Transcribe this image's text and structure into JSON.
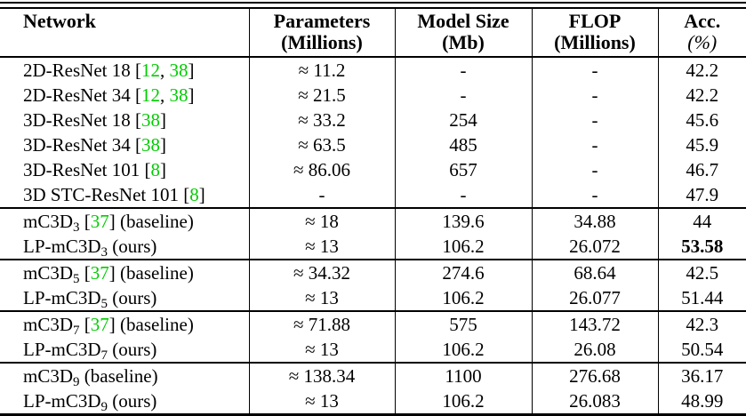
{
  "colors": {
    "citation_green": "#00CC00",
    "text": "#000000",
    "rule": "#000000",
    "background": "#ffffff"
  },
  "table": {
    "columns": [
      {
        "id": "network",
        "line1": "Network",
        "line2": ""
      },
      {
        "id": "parameters",
        "line1": "Parameters",
        "line2": "(Millions)"
      },
      {
        "id": "model_size",
        "line1": "Model Size",
        "line2": "(Mb)"
      },
      {
        "id": "flop",
        "line1": "FLOP",
        "line2": "(Millions)"
      },
      {
        "id": "acc",
        "line1": "Acc.",
        "line2": "(%)"
      }
    ],
    "rows": [
      {
        "network": {
          "pre": "2D-ResNet 18",
          "sub": "",
          "cites": [
            "12",
            "38"
          ],
          "suffix": ""
        },
        "parameters": "≈ 11.2",
        "model_size": "-",
        "flop": "-",
        "acc": "42.2",
        "acc_bold": false,
        "group_start": false
      },
      {
        "network": {
          "pre": "2D-ResNet 34",
          "sub": "",
          "cites": [
            "12",
            "38"
          ],
          "suffix": ""
        },
        "parameters": "≈ 21.5",
        "model_size": "-",
        "flop": "-",
        "acc": "42.2",
        "acc_bold": false,
        "group_start": false
      },
      {
        "network": {
          "pre": "3D-ResNet 18",
          "sub": "",
          "cites": [
            "38"
          ],
          "suffix": ""
        },
        "parameters": "≈ 33.2",
        "model_size": "254",
        "flop": "-",
        "acc": "45.6",
        "acc_bold": false,
        "group_start": false
      },
      {
        "network": {
          "pre": "3D-ResNet 34",
          "sub": "",
          "cites": [
            "38"
          ],
          "suffix": ""
        },
        "parameters": "≈ 63.5",
        "model_size": "485",
        "flop": "-",
        "acc": "45.9",
        "acc_bold": false,
        "group_start": false
      },
      {
        "network": {
          "pre": "3D-ResNet 101",
          "sub": "",
          "cites": [
            "8"
          ],
          "suffix": ""
        },
        "parameters": "≈ 86.06",
        "model_size": "657",
        "flop": "-",
        "acc": "46.7",
        "acc_bold": false,
        "group_start": false
      },
      {
        "network": {
          "pre": "3D STC-ResNet 101",
          "sub": "",
          "cites": [
            "8"
          ],
          "suffix": ""
        },
        "parameters": "-",
        "model_size": "-",
        "flop": "-",
        "acc": "47.9",
        "acc_bold": false,
        "group_start": false
      },
      {
        "network": {
          "pre": "mC3D",
          "sub": "3",
          "cites": [
            "37"
          ],
          "suffix": "(baseline)"
        },
        "parameters": "≈ 18",
        "model_size": "139.6",
        "flop": "34.88",
        "acc": "44",
        "acc_bold": false,
        "group_start": true
      },
      {
        "network": {
          "pre": "LP-mC3D",
          "sub": "3",
          "cites": [],
          "suffix": "(ours)"
        },
        "parameters": "≈ 13",
        "model_size": "106.2",
        "flop": "26.072",
        "acc": "53.58",
        "acc_bold": true,
        "group_start": false
      },
      {
        "network": {
          "pre": "mC3D",
          "sub": "5",
          "cites": [
            "37"
          ],
          "suffix": "(baseline)"
        },
        "parameters": "≈ 34.32",
        "model_size": "274.6",
        "flop": "68.64",
        "acc": "42.5",
        "acc_bold": false,
        "group_start": true
      },
      {
        "network": {
          "pre": "LP-mC3D",
          "sub": "5",
          "cites": [],
          "suffix": "(ours)"
        },
        "parameters": "≈ 13",
        "model_size": "106.2",
        "flop": "26.077",
        "acc": "51.44",
        "acc_bold": false,
        "group_start": false
      },
      {
        "network": {
          "pre": "mC3D",
          "sub": "7",
          "cites": [
            "37"
          ],
          "suffix": "(baseline)"
        },
        "parameters": "≈ 71.88",
        "model_size": "575",
        "flop": "143.72",
        "acc": "42.3",
        "acc_bold": false,
        "group_start": true
      },
      {
        "network": {
          "pre": "LP-mC3D",
          "sub": "7",
          "cites": [],
          "suffix": "(ours)"
        },
        "parameters": "≈ 13",
        "model_size": "106.2",
        "flop": "26.08",
        "acc": "50.54",
        "acc_bold": false,
        "group_start": false
      },
      {
        "network": {
          "pre": "mC3D",
          "sub": "9",
          "cites": [],
          "suffix": "(baseline)"
        },
        "parameters": "≈ 138.34",
        "model_size": "1100",
        "flop": "276.68",
        "acc": "36.17",
        "acc_bold": false,
        "group_start": true
      },
      {
        "network": {
          "pre": "LP-mC3D",
          "sub": "9",
          "cites": [],
          "suffix": "(ours)"
        },
        "parameters": "≈ 13",
        "model_size": "106.2",
        "flop": "26.083",
        "acc": "48.99",
        "acc_bold": false,
        "group_start": false
      }
    ]
  }
}
